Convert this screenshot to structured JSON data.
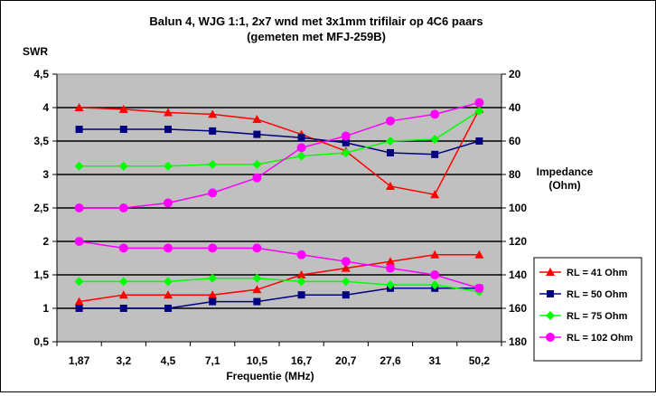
{
  "chart_data": {
    "type": "line",
    "title_line1": "Balun 4, WJG 1:1, 2x7 wnd met 3x1mm trifilair op 4C6 paars",
    "title_line2": "(gemeten met MFJ-259B)",
    "xlabel": "Frequentie (MHz)",
    "ylabel_left": "SWR",
    "ylabel_right_line1": "Impedance",
    "ylabel_right_line2": "(Ohm)",
    "categories": [
      "1,87",
      "3,2",
      "4,5",
      "7,1",
      "10,5",
      "16,7",
      "20,7",
      "27,6",
      "31",
      "50,2"
    ],
    "y_left": {
      "min": 0.5,
      "max": 4.5,
      "step": 0.5,
      "tick_labels": [
        "0,5",
        "1",
        "1,5",
        "2",
        "2,5",
        "3",
        "3,5",
        "4",
        "4,5"
      ]
    },
    "y_right": {
      "min": 20,
      "max": 180,
      "step": 20,
      "inverted": true,
      "tick_labels": [
        "20",
        "40",
        "60",
        "80",
        "100",
        "120",
        "140",
        "160",
        "180"
      ]
    },
    "grid": true,
    "legend_position": "right-bottom",
    "series": [
      {
        "name": "RL = 41 Ohm",
        "color": "#ff0000",
        "marker": "triangle",
        "swr": [
          1.1,
          1.2,
          1.2,
          1.2,
          1.28,
          1.5,
          1.6,
          1.7,
          1.8,
          1.8
        ],
        "impedance": [
          40,
          41,
          43,
          44,
          47,
          56,
          66,
          87,
          92,
          41
        ]
      },
      {
        "name": "RL = 50 Ohm",
        "color": "#000080",
        "marker": "square",
        "swr": [
          1.0,
          1.0,
          1.0,
          1.1,
          1.1,
          1.2,
          1.2,
          1.3,
          1.3,
          1.3
        ],
        "impedance": [
          53,
          53,
          53,
          54,
          56,
          58,
          61,
          67,
          68,
          60
        ]
      },
      {
        "name": "RL = 75 Ohm",
        "color": "#00ff00",
        "marker": "diamond",
        "swr": [
          1.4,
          1.4,
          1.4,
          1.45,
          1.45,
          1.4,
          1.4,
          1.35,
          1.35,
          1.25
        ],
        "impedance": [
          75,
          75,
          75,
          74,
          74,
          69,
          67,
          60,
          59,
          42
        ]
      },
      {
        "name": "RL = 102 Ohm",
        "color": "#ff00ff",
        "marker": "circle",
        "swr": [
          2.0,
          1.9,
          1.9,
          1.9,
          1.9,
          1.8,
          1.7,
          1.6,
          1.5,
          1.3
        ],
        "impedance": [
          100,
          100,
          97,
          91,
          82,
          64,
          57,
          48,
          44,
          37
        ]
      }
    ]
  }
}
